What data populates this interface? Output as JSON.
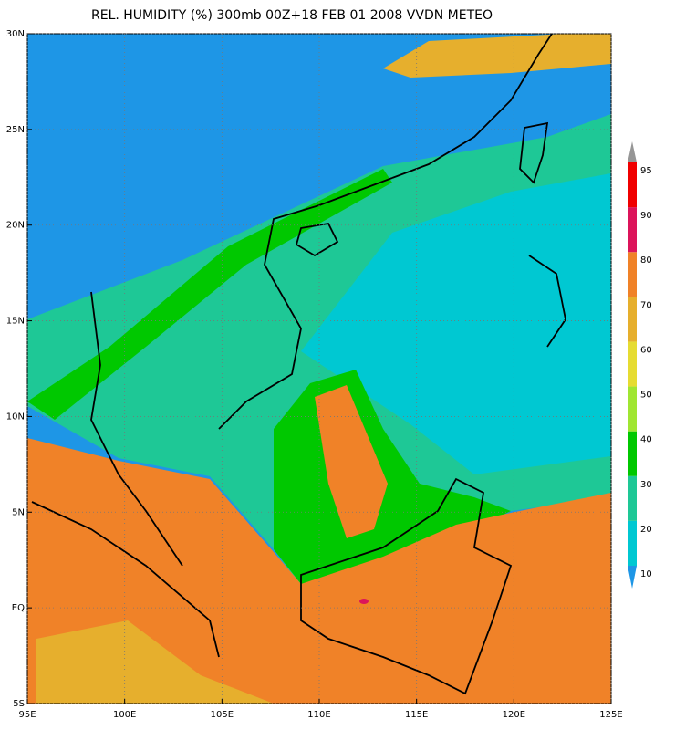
{
  "title": "REL. HUMIDITY (%) 300mb 00Z+18 FEB 01 2008 VVDN METEO",
  "map": {
    "xlim": [
      95,
      125
    ],
    "ylim": [
      -5,
      30
    ],
    "grid": true,
    "xticks": [
      {
        "value": 95,
        "label": "95E"
      },
      {
        "value": 100,
        "label": "100E"
      },
      {
        "value": 105,
        "label": "105E"
      },
      {
        "value": 110,
        "label": "110E"
      },
      {
        "value": 115,
        "label": "115E"
      },
      {
        "value": 120,
        "label": "120E"
      },
      {
        "value": 125,
        "label": "125E"
      }
    ],
    "yticks": [
      {
        "value": -5,
        "label": "5S"
      },
      {
        "value": 0,
        "label": "EQ"
      },
      {
        "value": 5,
        "label": "5N"
      },
      {
        "value": 10,
        "label": "10N"
      },
      {
        "value": 15,
        "label": "15N"
      },
      {
        "value": 20,
        "label": "20N"
      },
      {
        "value": 25,
        "label": "25N"
      },
      {
        "value": 30,
        "label": "30N"
      }
    ]
  },
  "colorbar": {
    "levels": [
      10,
      20,
      30,
      40,
      50,
      60,
      70,
      80,
      90,
      95
    ],
    "colors": [
      "#1e96e6",
      "#00c8d2",
      "#1ec896",
      "#00c800",
      "#a0e632",
      "#e6dc32",
      "#e6af2d",
      "#f08228",
      "#dc145a",
      "#f00000",
      "#969696"
    ]
  }
}
